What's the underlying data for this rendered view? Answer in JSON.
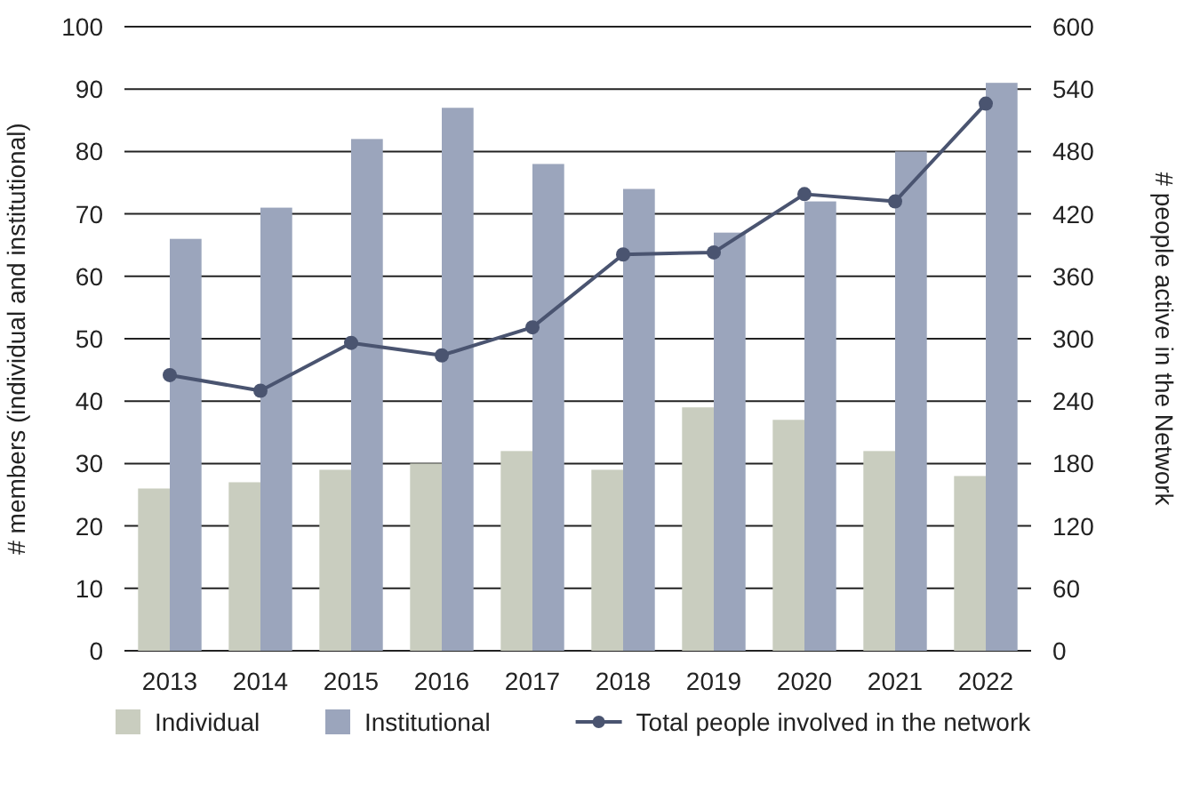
{
  "chart_data": {
    "type": "bar",
    "categories": [
      "2013",
      "2014",
      "2015",
      "2016",
      "2017",
      "2018",
      "2019",
      "2020",
      "2021",
      "2022"
    ],
    "ylabel": "# members (individual and institutional)",
    "y2label": "# people active in the Network",
    "ylim": [
      0,
      100
    ],
    "yticks": [
      0,
      10,
      20,
      30,
      40,
      50,
      60,
      70,
      80,
      90,
      100
    ],
    "y2lim": [
      0,
      600
    ],
    "y2ticks": [
      0,
      60,
      120,
      180,
      240,
      300,
      360,
      420,
      480,
      540,
      600
    ],
    "grid": "y",
    "legend": "bottom",
    "series": [
      {
        "name": "Individual",
        "color": "#c9cdbf",
        "values": [
          26,
          27,
          29,
          30,
          32,
          29,
          39,
          37,
          32,
          28
        ]
      },
      {
        "name": "Institutional",
        "color": "#9ba5bc",
        "values": [
          66,
          71,
          82,
          87,
          78,
          74,
          67,
          72,
          80,
          91
        ]
      },
      {
        "name": "Total people involved in the network",
        "type": "line",
        "axis": "y2",
        "color": "#4a5470",
        "marker": "circle",
        "values": [
          265,
          250,
          296,
          284,
          311,
          381,
          383,
          439,
          432,
          526
        ]
      }
    ]
  }
}
